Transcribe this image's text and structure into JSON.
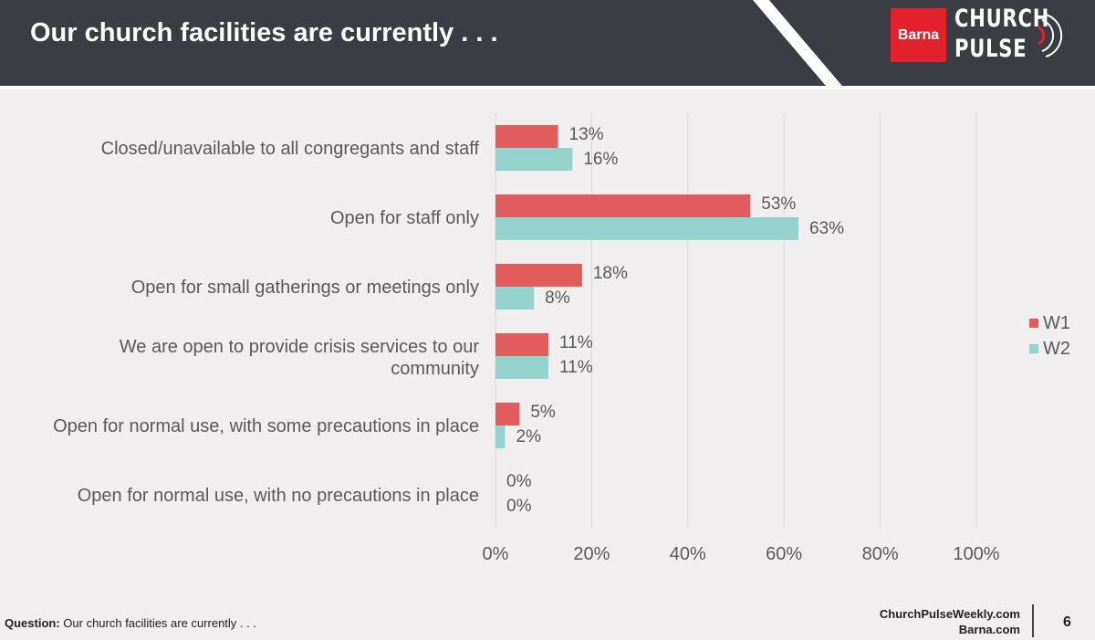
{
  "header": {
    "title": "Our church facilities are currently . . .",
    "logo_left": "Barna",
    "logo_line1": "CHURCH",
    "logo_line2": "PULSE"
  },
  "colors": {
    "header_bg": "#3a3d43",
    "w1": "#e15c5c",
    "w2": "#93d2cd",
    "grid": "#d9d9d9",
    "text": "#595959",
    "brand_red": "#e3222d"
  },
  "chart_data": {
    "type": "bar",
    "orientation": "horizontal",
    "categories": [
      "Closed/unavailable to all congregants and staff",
      "Open for staff only",
      "Open for small gatherings or meetings only",
      "We are open to provide crisis services to our community",
      "Open for normal use, with some precautions in place",
      "Open for normal use, with no precautions in place"
    ],
    "series": [
      {
        "name": "W1",
        "values": [
          13,
          53,
          18,
          11,
          5,
          0
        ]
      },
      {
        "name": "W2",
        "values": [
          16,
          63,
          8,
          11,
          2,
          0
        ]
      }
    ],
    "data_labels": {
      "W1": [
        "13%",
        "53%",
        "18%",
        "11%",
        "5%",
        "0%"
      ],
      "W2": [
        "16%",
        "63%",
        "8%",
        "11%",
        "2%",
        "0%"
      ]
    },
    "x_ticks": [
      "0%",
      "20%",
      "40%",
      "60%",
      "80%",
      "100%"
    ],
    "xlim": [
      0,
      100
    ],
    "grid": true,
    "legend_position": "right"
  },
  "legend": [
    {
      "label": "W1"
    },
    {
      "label": "W2"
    }
  ],
  "footer": {
    "question_label": "Question:",
    "question_text": " Our church facilities are currently . . .",
    "link1": "ChurchPulseWeekly.com",
    "link2": "Barna.com",
    "page_number": "6"
  }
}
